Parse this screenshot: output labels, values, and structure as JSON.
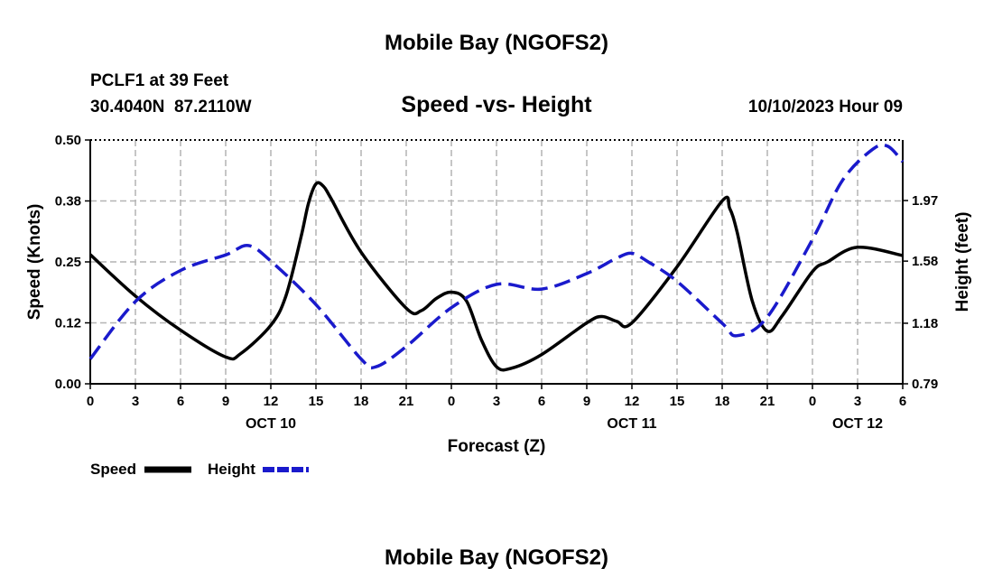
{
  "header": {
    "title": "Mobile Bay (NGOFS2)",
    "station": "PCLF1 at 39 Feet",
    "coords": "30.4040N  87.2110W",
    "subtitle": "Speed -vs- Height",
    "datetime": "10/10/2023 Hour 09"
  },
  "footer": {
    "title": "Mobile Bay (NGOFS2)"
  },
  "legend": {
    "speed_label": "Speed",
    "height_label": "Height"
  },
  "colors": {
    "speed": "#000000",
    "height": "#1a1acc",
    "grid": "#b4b4b4"
  },
  "chart_data": {
    "type": "line",
    "title": "Speed -vs- Height",
    "xlabel": "Forecast (Z)",
    "ylabel": "Speed (Knots)",
    "ylabel_right": "Height (feet)",
    "x_range_hours": [
      0,
      54
    ],
    "x_ticks": [
      {
        "h": 0,
        "label": "0"
      },
      {
        "h": 3,
        "label": "3"
      },
      {
        "h": 6,
        "label": "6"
      },
      {
        "h": 9,
        "label": "9"
      },
      {
        "h": 12,
        "label": "12"
      },
      {
        "h": 15,
        "label": "15"
      },
      {
        "h": 18,
        "label": "18"
      },
      {
        "h": 21,
        "label": "21"
      },
      {
        "h": 24,
        "label": "0"
      },
      {
        "h": 27,
        "label": "3"
      },
      {
        "h": 30,
        "label": "6"
      },
      {
        "h": 33,
        "label": "9"
      },
      {
        "h": 36,
        "label": "12"
      },
      {
        "h": 39,
        "label": "15"
      },
      {
        "h": 42,
        "label": "18"
      },
      {
        "h": 45,
        "label": "21"
      },
      {
        "h": 48,
        "label": "0"
      },
      {
        "h": 51,
        "label": "3"
      },
      {
        "h": 54,
        "label": "6"
      }
    ],
    "day_labels": [
      {
        "h": 12,
        "label": "OCT 10"
      },
      {
        "h": 36,
        "label": "OCT 11"
      },
      {
        "h": 51,
        "label": "OCT 12"
      }
    ],
    "y_left": {
      "range": [
        0,
        0.5
      ],
      "ticks": [
        {
          "v": 0.0,
          "label": "0.00"
        },
        {
          "v": 0.125,
          "label": "0.12"
        },
        {
          "v": 0.25,
          "label": "0.25"
        },
        {
          "v": 0.375,
          "label": "0.38"
        },
        {
          "v": 0.5,
          "label": "0.50"
        }
      ]
    },
    "y_right": {
      "range": [
        0.79,
        2.36
      ],
      "ticks": [
        {
          "v": 0.79,
          "label": "0.79"
        },
        {
          "v": 1.18,
          "label": "1.18"
        },
        {
          "v": 1.58,
          "label": "1.58"
        },
        {
          "v": 1.97,
          "label": "1.97"
        }
      ]
    },
    "series": [
      {
        "name": "Speed",
        "axis": "left",
        "style": "solid",
        "points": [
          [
            0,
            0.265
          ],
          [
            3,
            0.18
          ],
          [
            6,
            0.11
          ],
          [
            9,
            0.055
          ],
          [
            10,
            0.062
          ],
          [
            12,
            0.12
          ],
          [
            13,
            0.18
          ],
          [
            14,
            0.3
          ],
          [
            14.5,
            0.37
          ],
          [
            15,
            0.41
          ],
          [
            15.5,
            0.405
          ],
          [
            16,
            0.38
          ],
          [
            18,
            0.27
          ],
          [
            21,
            0.155
          ],
          [
            22,
            0.15
          ],
          [
            23,
            0.175
          ],
          [
            24,
            0.188
          ],
          [
            25,
            0.17
          ],
          [
            26,
            0.09
          ],
          [
            27,
            0.035
          ],
          [
            28,
            0.032
          ],
          [
            30,
            0.06
          ],
          [
            33,
            0.125
          ],
          [
            34,
            0.138
          ],
          [
            35,
            0.128
          ],
          [
            36,
            0.125
          ],
          [
            39,
            0.24
          ],
          [
            42,
            0.375
          ],
          [
            42.5,
            0.36
          ],
          [
            43,
            0.31
          ],
          [
            44,
            0.17
          ],
          [
            45,
            0.108
          ],
          [
            46,
            0.14
          ],
          [
            48,
            0.23
          ],
          [
            49,
            0.25
          ],
          [
            51,
            0.28
          ],
          [
            54,
            0.263
          ]
        ]
      },
      {
        "name": "Height",
        "axis": "right",
        "style": "dashed",
        "points": [
          [
            0,
            0.95
          ],
          [
            3,
            1.32
          ],
          [
            6,
            1.52
          ],
          [
            9,
            1.62
          ],
          [
            10.5,
            1.68
          ],
          [
            12,
            1.58
          ],
          [
            15,
            1.3
          ],
          [
            18,
            0.95
          ],
          [
            19,
            0.9
          ],
          [
            21,
            1.03
          ],
          [
            24,
            1.28
          ],
          [
            27,
            1.43
          ],
          [
            30,
            1.4
          ],
          [
            33,
            1.5
          ],
          [
            35,
            1.6
          ],
          [
            36,
            1.63
          ],
          [
            37,
            1.58
          ],
          [
            39,
            1.45
          ],
          [
            42,
            1.18
          ],
          [
            43,
            1.1
          ],
          [
            45,
            1.22
          ],
          [
            48,
            1.72
          ],
          [
            50,
            2.1
          ],
          [
            52,
            2.3
          ],
          [
            53,
            2.32
          ],
          [
            54,
            2.22
          ]
        ]
      }
    ]
  }
}
